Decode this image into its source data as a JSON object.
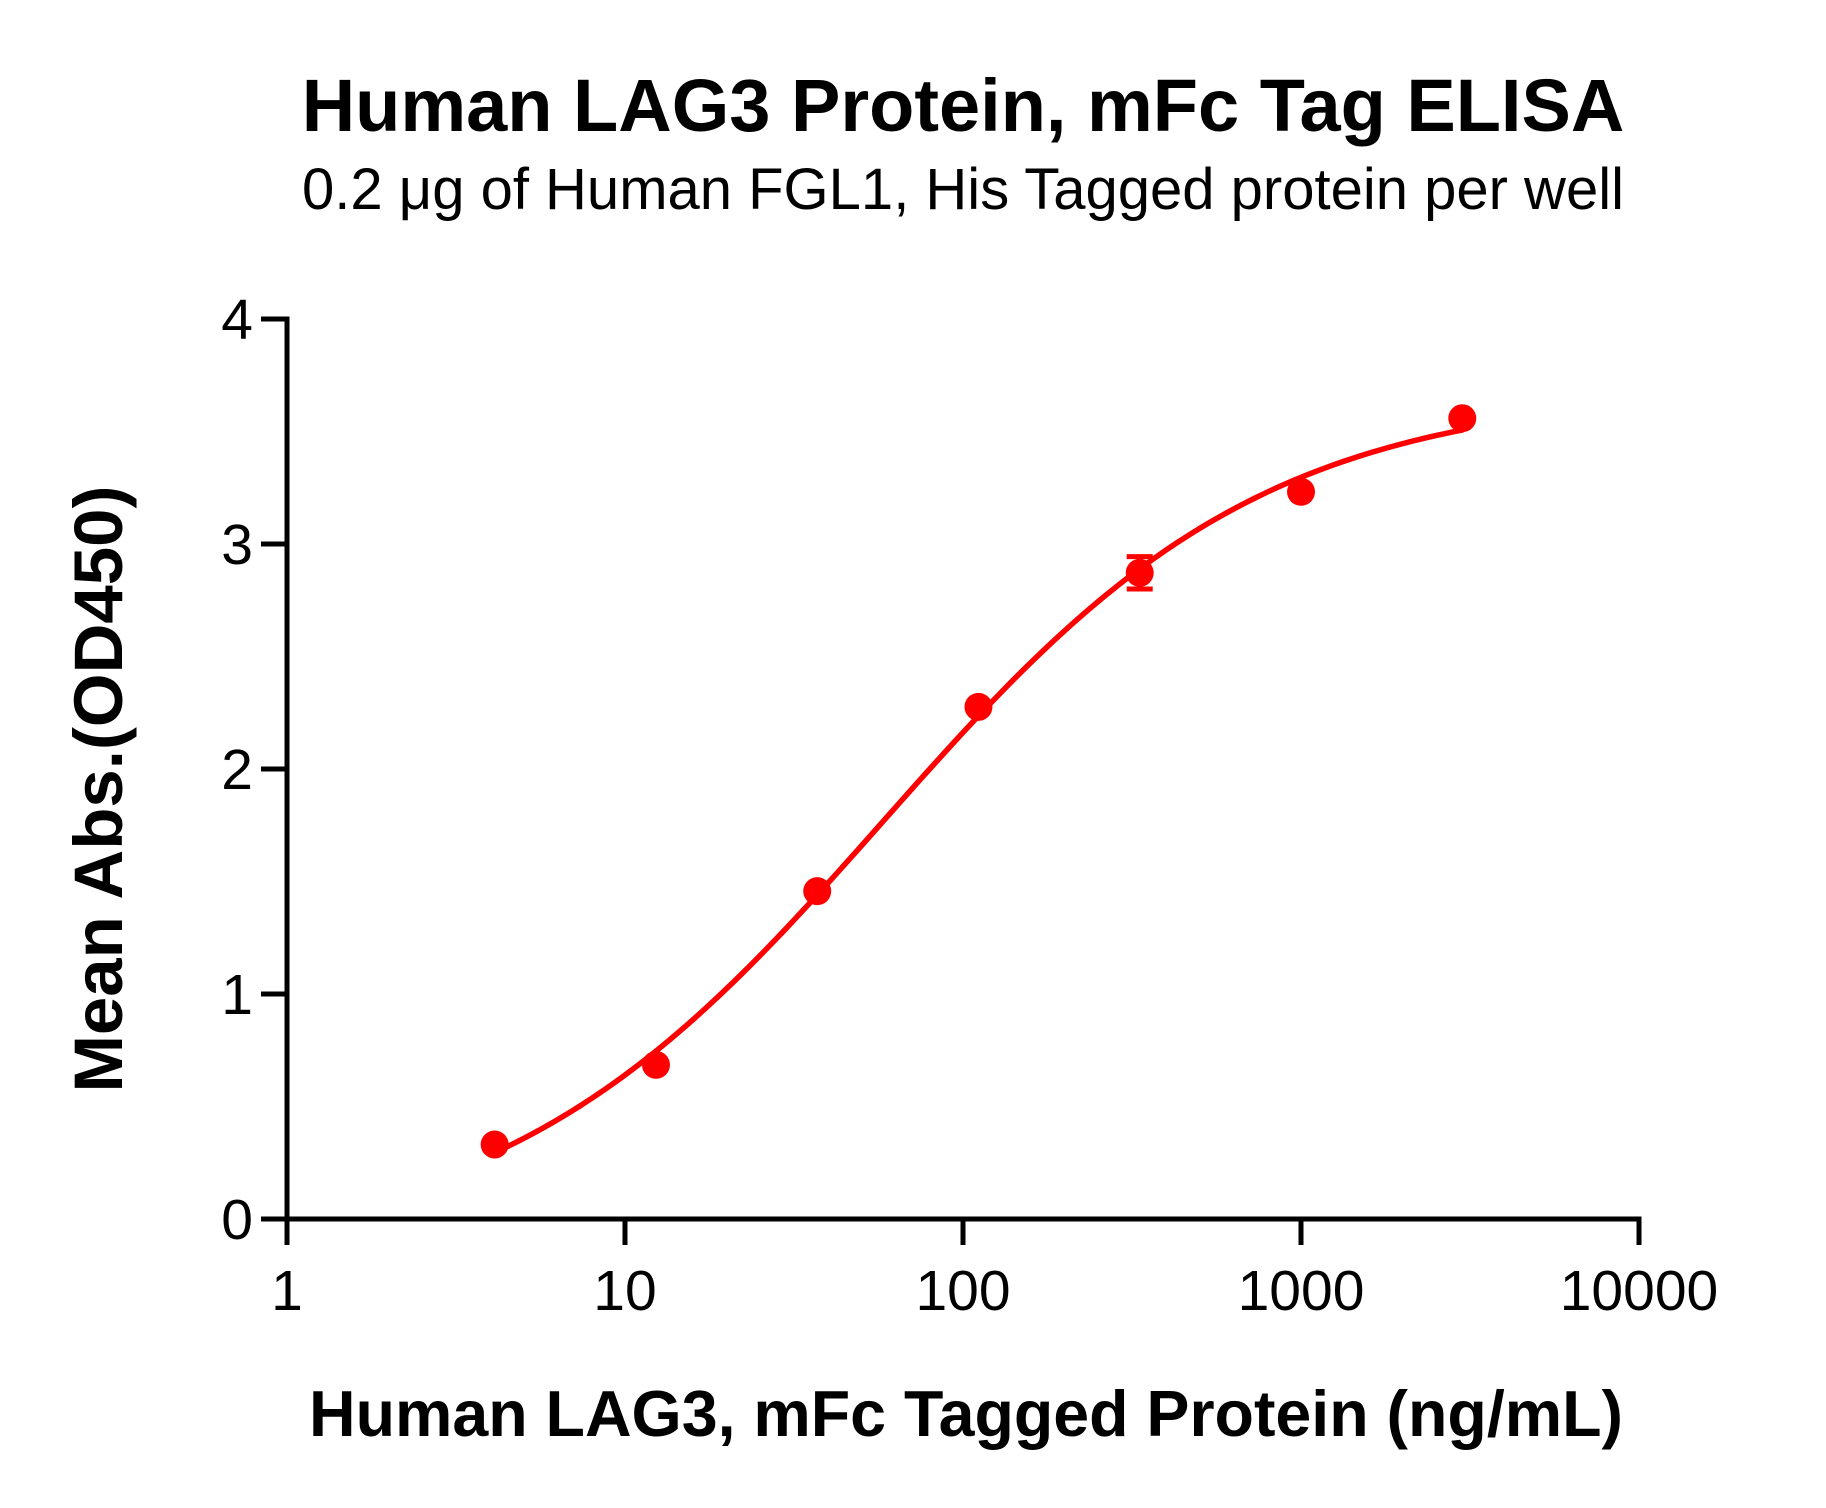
{
  "page": {
    "background_color": "#FFFFFF",
    "foreground_color": "#000000"
  },
  "chart_data": {
    "type": "scatter",
    "title": "Human LAG3 Protein, mFc Tag ELISA",
    "subtitle": "0.2 μg of Human FGL1, His Tagged protein per well",
    "xlabel": "Human LAG3, mFc Tagged Protein (ng/mL)",
    "ylabel": "Mean Abs.(OD450)",
    "x_scale": "log10",
    "y_scale": "linear",
    "xlim": [
      1,
      10000
    ],
    "ylim": [
      0,
      4
    ],
    "x_ticks": [
      {
        "value": 1,
        "label": "1"
      },
      {
        "value": 10,
        "label": "10"
      },
      {
        "value": 100,
        "label": "100"
      },
      {
        "value": 1000,
        "label": "1000"
      },
      {
        "value": 10000,
        "label": "10000"
      }
    ],
    "y_ticks": [
      {
        "value": 0,
        "label": "0"
      },
      {
        "value": 1,
        "label": "1"
      },
      {
        "value": 2,
        "label": "2"
      },
      {
        "value": 3,
        "label": "3"
      },
      {
        "value": 4,
        "label": "4"
      }
    ],
    "grid": false,
    "legend": false,
    "axis_color": "#000000",
    "series": [
      {
        "name": "Human LAG3, mFc Tag",
        "color": "#FF0000",
        "marker": "circle",
        "points": [
          {
            "x": 4.115,
            "y": 0.331
          },
          {
            "x": 12.35,
            "y": 0.685
          },
          {
            "x": 37.04,
            "y": 1.457
          },
          {
            "x": 111.1,
            "y": 2.276
          },
          {
            "x": 333.3,
            "y": 2.872,
            "error": 0.072
          },
          {
            "x": 1000,
            "y": 3.232
          },
          {
            "x": 3000,
            "y": 3.559
          }
        ],
        "fit": {
          "type": "4PL",
          "bottom": -0.149,
          "top": 3.6832,
          "logEC50": 1.76344,
          "hill": 0.768,
          "x_range": [
            4.115,
            3000
          ]
        }
      }
    ]
  }
}
